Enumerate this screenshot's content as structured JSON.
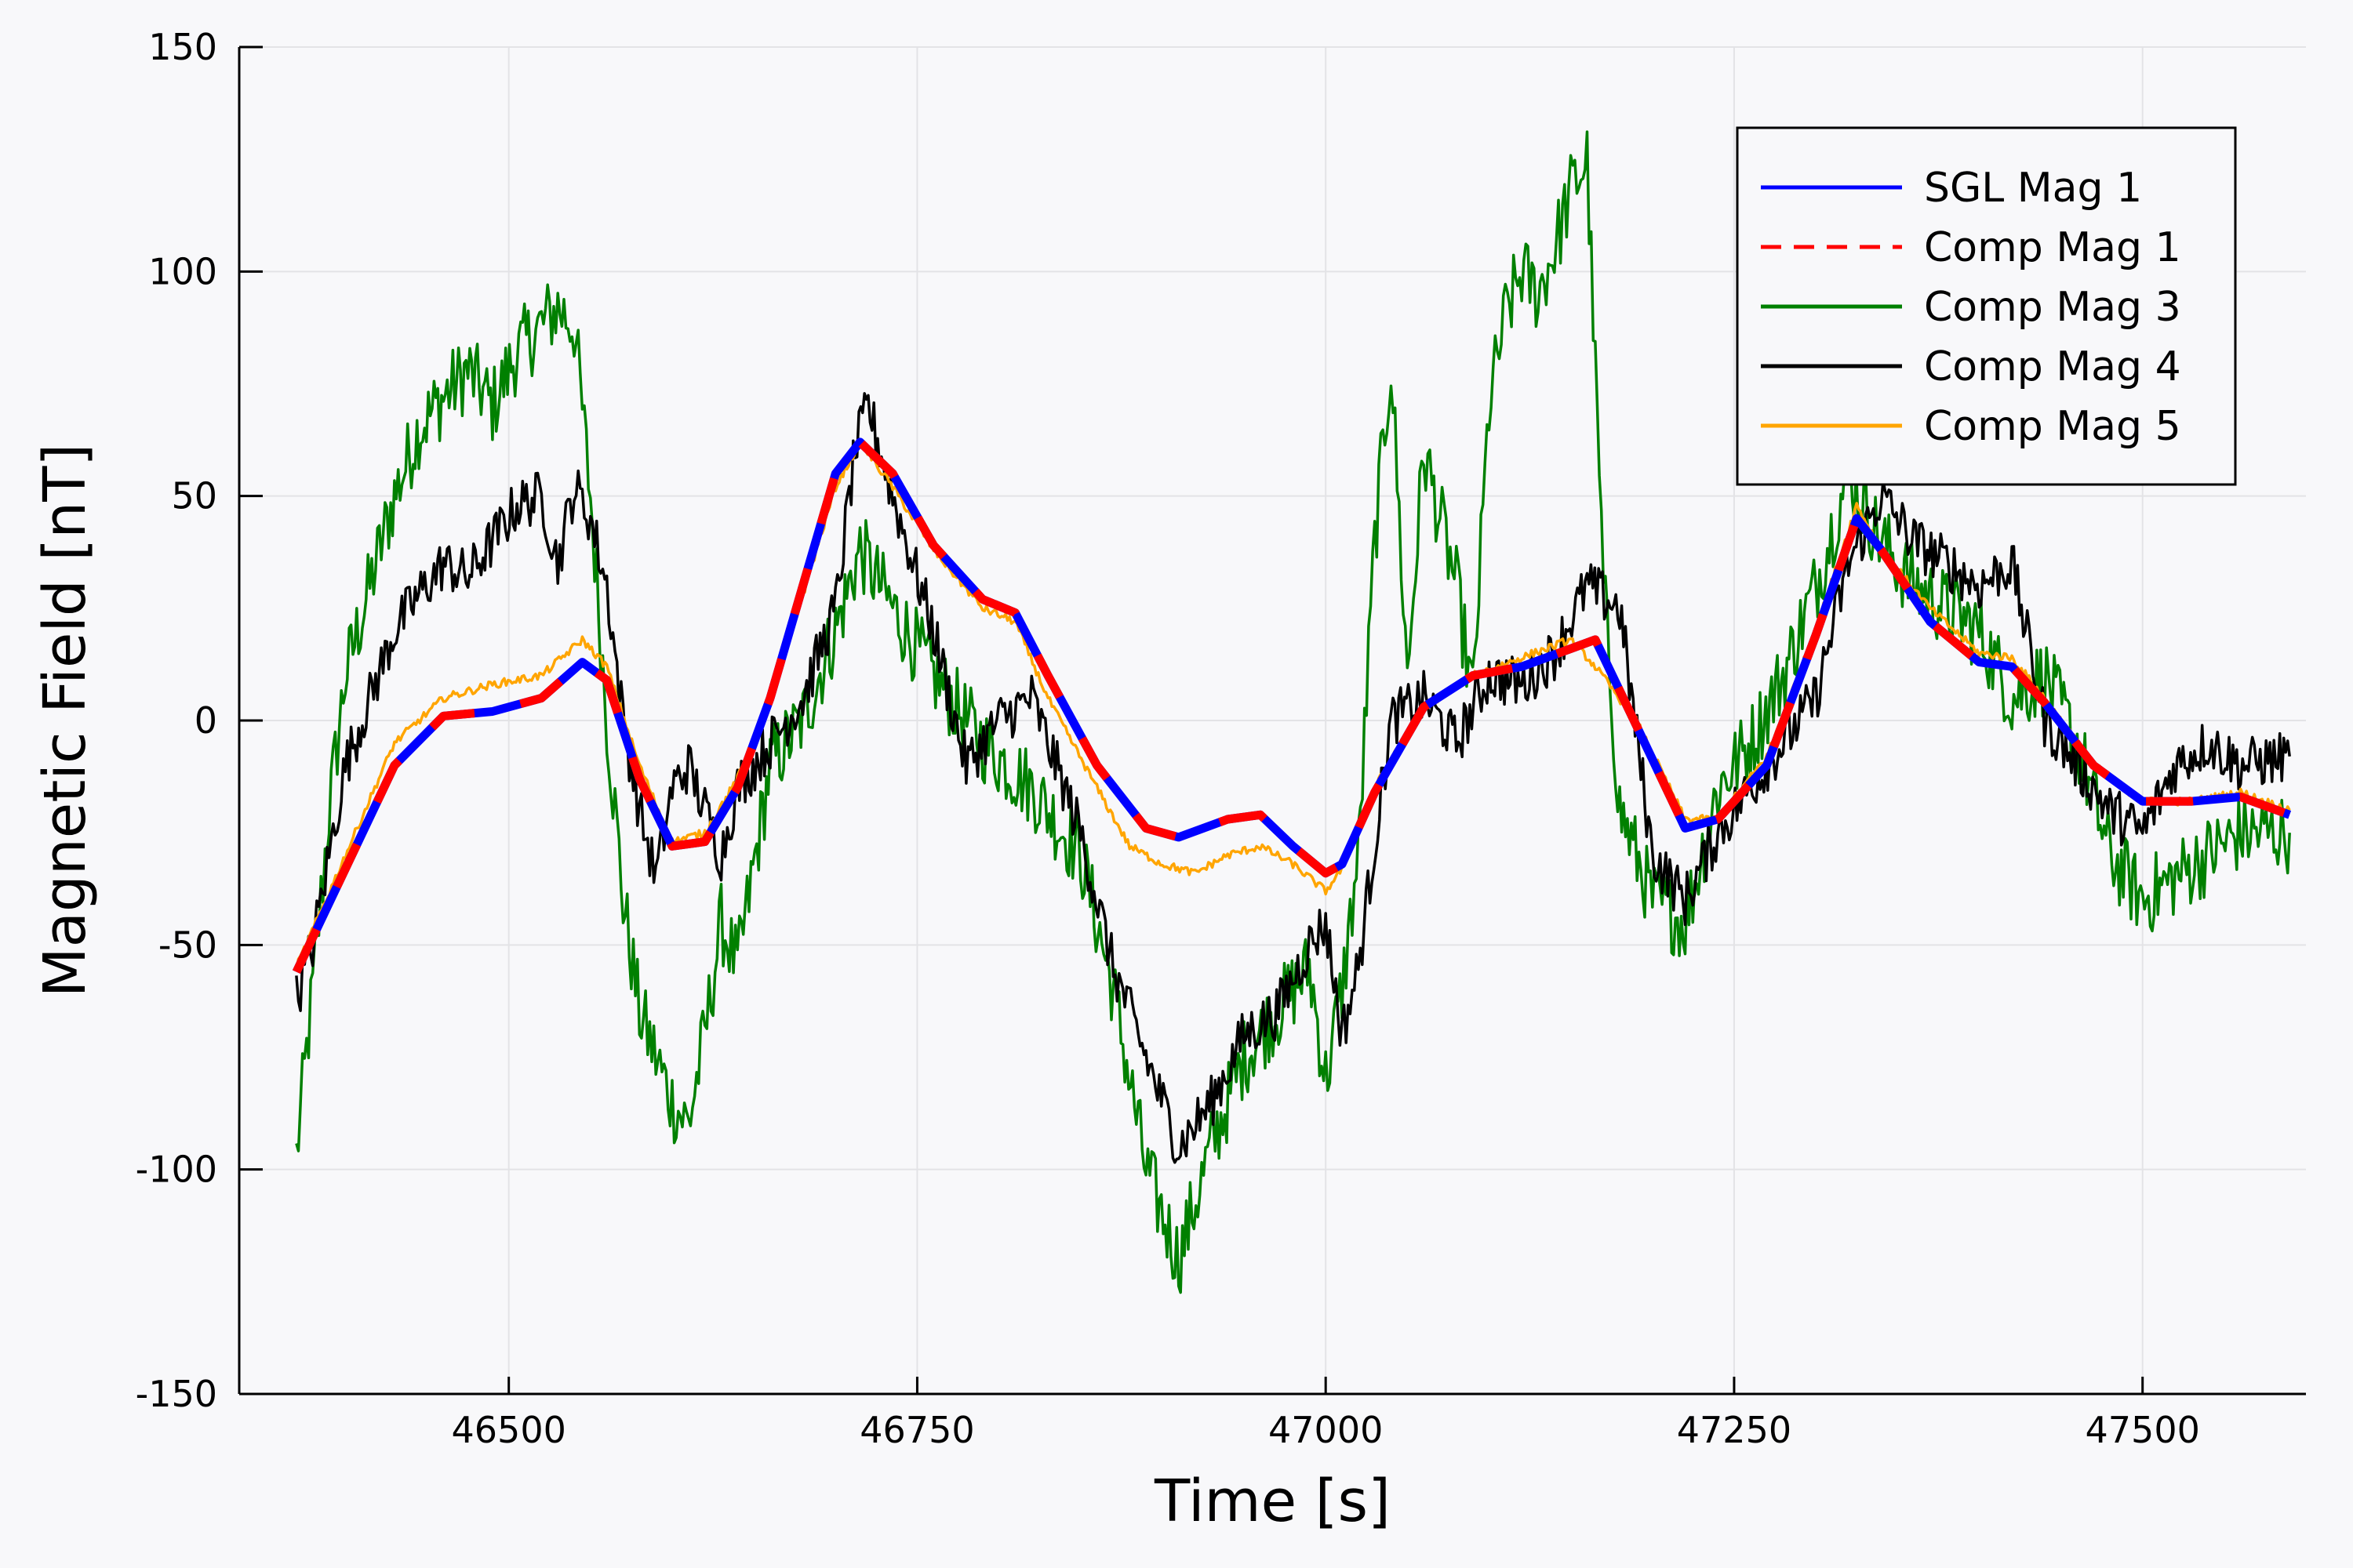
{
  "chart_data": {
    "type": "line",
    "title": "",
    "xlabel": "Time [s]",
    "ylabel": "Magnetic Field [nT]",
    "xlim": [
      46335,
      47600
    ],
    "ylim": [
      -150,
      150
    ],
    "xticks": [
      46500,
      46750,
      47000,
      47250,
      47500
    ],
    "yticks": [
      -150,
      -100,
      -50,
      0,
      50,
      100,
      150
    ],
    "grid": true,
    "legend_position": "top-right",
    "series": [
      {
        "name": "SGL Mag 1",
        "color": "#0000ff",
        "style": "solid",
        "x": [
          46370,
          46400,
          46430,
          46460,
          46490,
          46520,
          46545,
          46560,
          46580,
          46600,
          46620,
          46640,
          46660,
          46680,
          46700,
          46715,
          46735,
          46760,
          46790,
          46810,
          46830,
          46860,
          46890,
          46910,
          46940,
          46960,
          46980,
          47000,
          47010,
          47030,
          47060,
          47090,
          47120,
          47150,
          47165,
          47190,
          47220,
          47240,
          47270,
          47300,
          47325,
          47340,
          47370,
          47400,
          47420,
          47440,
          47470,
          47500,
          47530,
          47560,
          47590
        ],
        "y": [
          -56,
          -33,
          -10,
          1,
          2,
          5,
          13,
          9,
          -13,
          -28,
          -27,
          -15,
          5,
          30,
          55,
          62,
          55,
          39,
          27,
          24,
          10,
          -10,
          -24,
          -26,
          -22,
          -21,
          -28,
          -34,
          -32,
          -16,
          3,
          10,
          12,
          16,
          18,
          -1,
          -24,
          -22,
          -10,
          19,
          45,
          38,
          22,
          13,
          12,
          4,
          -10,
          -18,
          -18,
          -17,
          -21
        ]
      },
      {
        "name": "Comp Mag 1",
        "color": "#ff0000",
        "style": "dashed",
        "x": [
          46370,
          46400,
          46430,
          46460,
          46490,
          46520,
          46545,
          46560,
          46580,
          46600,
          46620,
          46640,
          46660,
          46680,
          46700,
          46715,
          46735,
          46760,
          46790,
          46810,
          46830,
          46860,
          46890,
          46910,
          46940,
          46960,
          46980,
          47000,
          47010,
          47030,
          47060,
          47090,
          47120,
          47150,
          47165,
          47190,
          47220,
          47240,
          47270,
          47300,
          47325,
          47340,
          47370,
          47400,
          47420,
          47440,
          47470,
          47500,
          47530,
          47560,
          47590
        ],
        "y": [
          -56,
          -33,
          -10,
          1,
          2,
          5,
          13,
          9,
          -13,
          -28,
          -27,
          -15,
          5,
          30,
          55,
          62,
          55,
          39,
          27,
          24,
          10,
          -10,
          -24,
          -26,
          -22,
          -21,
          -28,
          -34,
          -32,
          -16,
          3,
          10,
          12,
          16,
          18,
          -1,
          -24,
          -22,
          -10,
          19,
          45,
          38,
          22,
          13,
          12,
          4,
          -10,
          -18,
          -18,
          -17,
          -21
        ]
      },
      {
        "name": "Comp Mag 3",
        "color": "#008000",
        "style": "solid",
        "x": [
          46370,
          46380,
          46390,
          46400,
          46415,
          46430,
          46445,
          46460,
          46475,
          46490,
          46505,
          46520,
          46530,
          46540,
          46550,
          46560,
          46570,
          46580,
          46590,
          46600,
          46610,
          46620,
          46630,
          46640,
          46660,
          46680,
          46700,
          46715,
          46735,
          46760,
          46790,
          46820,
          46850,
          46870,
          46890,
          46910,
          46930,
          46950,
          46970,
          46990,
          47000,
          47010,
          47020,
          47030,
          47040,
          47050,
          47060,
          47070,
          47080,
          47090,
          47100,
          47110,
          47120,
          47130,
          47140,
          47150,
          47160,
          47170,
          47180,
          47200,
          47220,
          47240,
          47260,
          47280,
          47300,
          47320,
          47340,
          47360,
          47380,
          47400,
          47420,
          47440,
          47460,
          47480,
          47500,
          47520,
          47540,
          47560,
          47590
        ],
        "y": [
          -97,
          -60,
          -20,
          10,
          30,
          50,
          65,
          72,
          78,
          70,
          82,
          88,
          92,
          88,
          50,
          0,
          -40,
          -65,
          -75,
          -85,
          -90,
          -70,
          -45,
          -55,
          -10,
          0,
          20,
          38,
          25,
          10,
          -5,
          -15,
          -30,
          -60,
          -100,
          -120,
          -95,
          -75,
          -65,
          -55,
          -80,
          -60,
          -30,
          40,
          80,
          10,
          60,
          45,
          30,
          5,
          70,
          90,
          100,
          95,
          105,
          118,
          125,
          30,
          -20,
          -40,
          -45,
          -15,
          -5,
          10,
          30,
          55,
          40,
          30,
          25,
          20,
          5,
          10,
          -5,
          -30,
          -40,
          -35,
          -30,
          -25,
          -25
        ]
      },
      {
        "name": "Comp Mag 4",
        "color": "#000000",
        "style": "solid",
        "x": [
          46370,
          46380,
          46390,
          46400,
          46415,
          46430,
          46445,
          46460,
          46475,
          46490,
          46505,
          46520,
          46530,
          46540,
          46550,
          46560,
          46570,
          46580,
          46590,
          46600,
          46610,
          46620,
          46630,
          46640,
          46660,
          46680,
          46700,
          46712,
          46720,
          46735,
          46760,
          46780,
          46800,
          46820,
          46850,
          46870,
          46890,
          46910,
          46930,
          46950,
          46970,
          46990,
          47000,
          47010,
          47020,
          47040,
          47060,
          47080,
          47100,
          47120,
          47140,
          47160,
          47180,
          47200,
          47220,
          47240,
          47260,
          47280,
          47300,
          47320,
          47340,
          47360,
          47380,
          47400,
          47420,
          47440,
          47460,
          47480,
          47500,
          47520,
          47540,
          47560,
          47590
        ],
        "y": [
          -62,
          -50,
          -30,
          -10,
          5,
          20,
          28,
          35,
          32,
          40,
          48,
          50,
          35,
          52,
          45,
          30,
          0,
          -20,
          -35,
          -15,
          -10,
          -20,
          -30,
          -15,
          -5,
          5,
          25,
          60,
          70,
          50,
          20,
          -10,
          0,
          5,
          -25,
          -55,
          -75,
          -95,
          -85,
          -70,
          -65,
          -50,
          -45,
          -70,
          -55,
          0,
          5,
          -5,
          10,
          8,
          15,
          30,
          25,
          -30,
          -40,
          -25,
          -15,
          -5,
          5,
          35,
          50,
          40,
          35,
          30,
          35,
          0,
          -10,
          -20,
          -25,
          -10,
          -5,
          -10,
          -8
        ]
      },
      {
        "name": "Comp Mag 5",
        "color": "#ffa500",
        "style": "solid",
        "x": [
          46370,
          46400,
          46430,
          46460,
          46490,
          46520,
          46545,
          46560,
          46580,
          46600,
          46620,
          46640,
          46660,
          46680,
          46700,
          46715,
          46735,
          46760,
          46790,
          46810,
          46830,
          46860,
          46880,
          46900,
          46920,
          46940,
          46960,
          46980,
          47000,
          47010,
          47030,
          47060,
          47090,
          47120,
          47150,
          47165,
          47190,
          47220,
          47240,
          47270,
          47300,
          47325,
          47340,
          47370,
          47400,
          47420,
          47440,
          47470,
          47500,
          47530,
          47560,
          47590
        ],
        "y": [
          -55,
          -30,
          -5,
          5,
          8,
          10,
          18,
          12,
          -10,
          -27,
          -25,
          -13,
          5,
          28,
          52,
          62,
          52,
          38,
          25,
          22,
          5,
          -15,
          -28,
          -32,
          -34,
          -30,
          -28,
          -32,
          -38,
          -33,
          -15,
          3,
          10,
          14,
          18,
          12,
          0,
          -22,
          -22,
          -8,
          20,
          48,
          38,
          25,
          15,
          14,
          5,
          -10,
          -18,
          -18,
          -16,
          -20
        ]
      }
    ]
  }
}
